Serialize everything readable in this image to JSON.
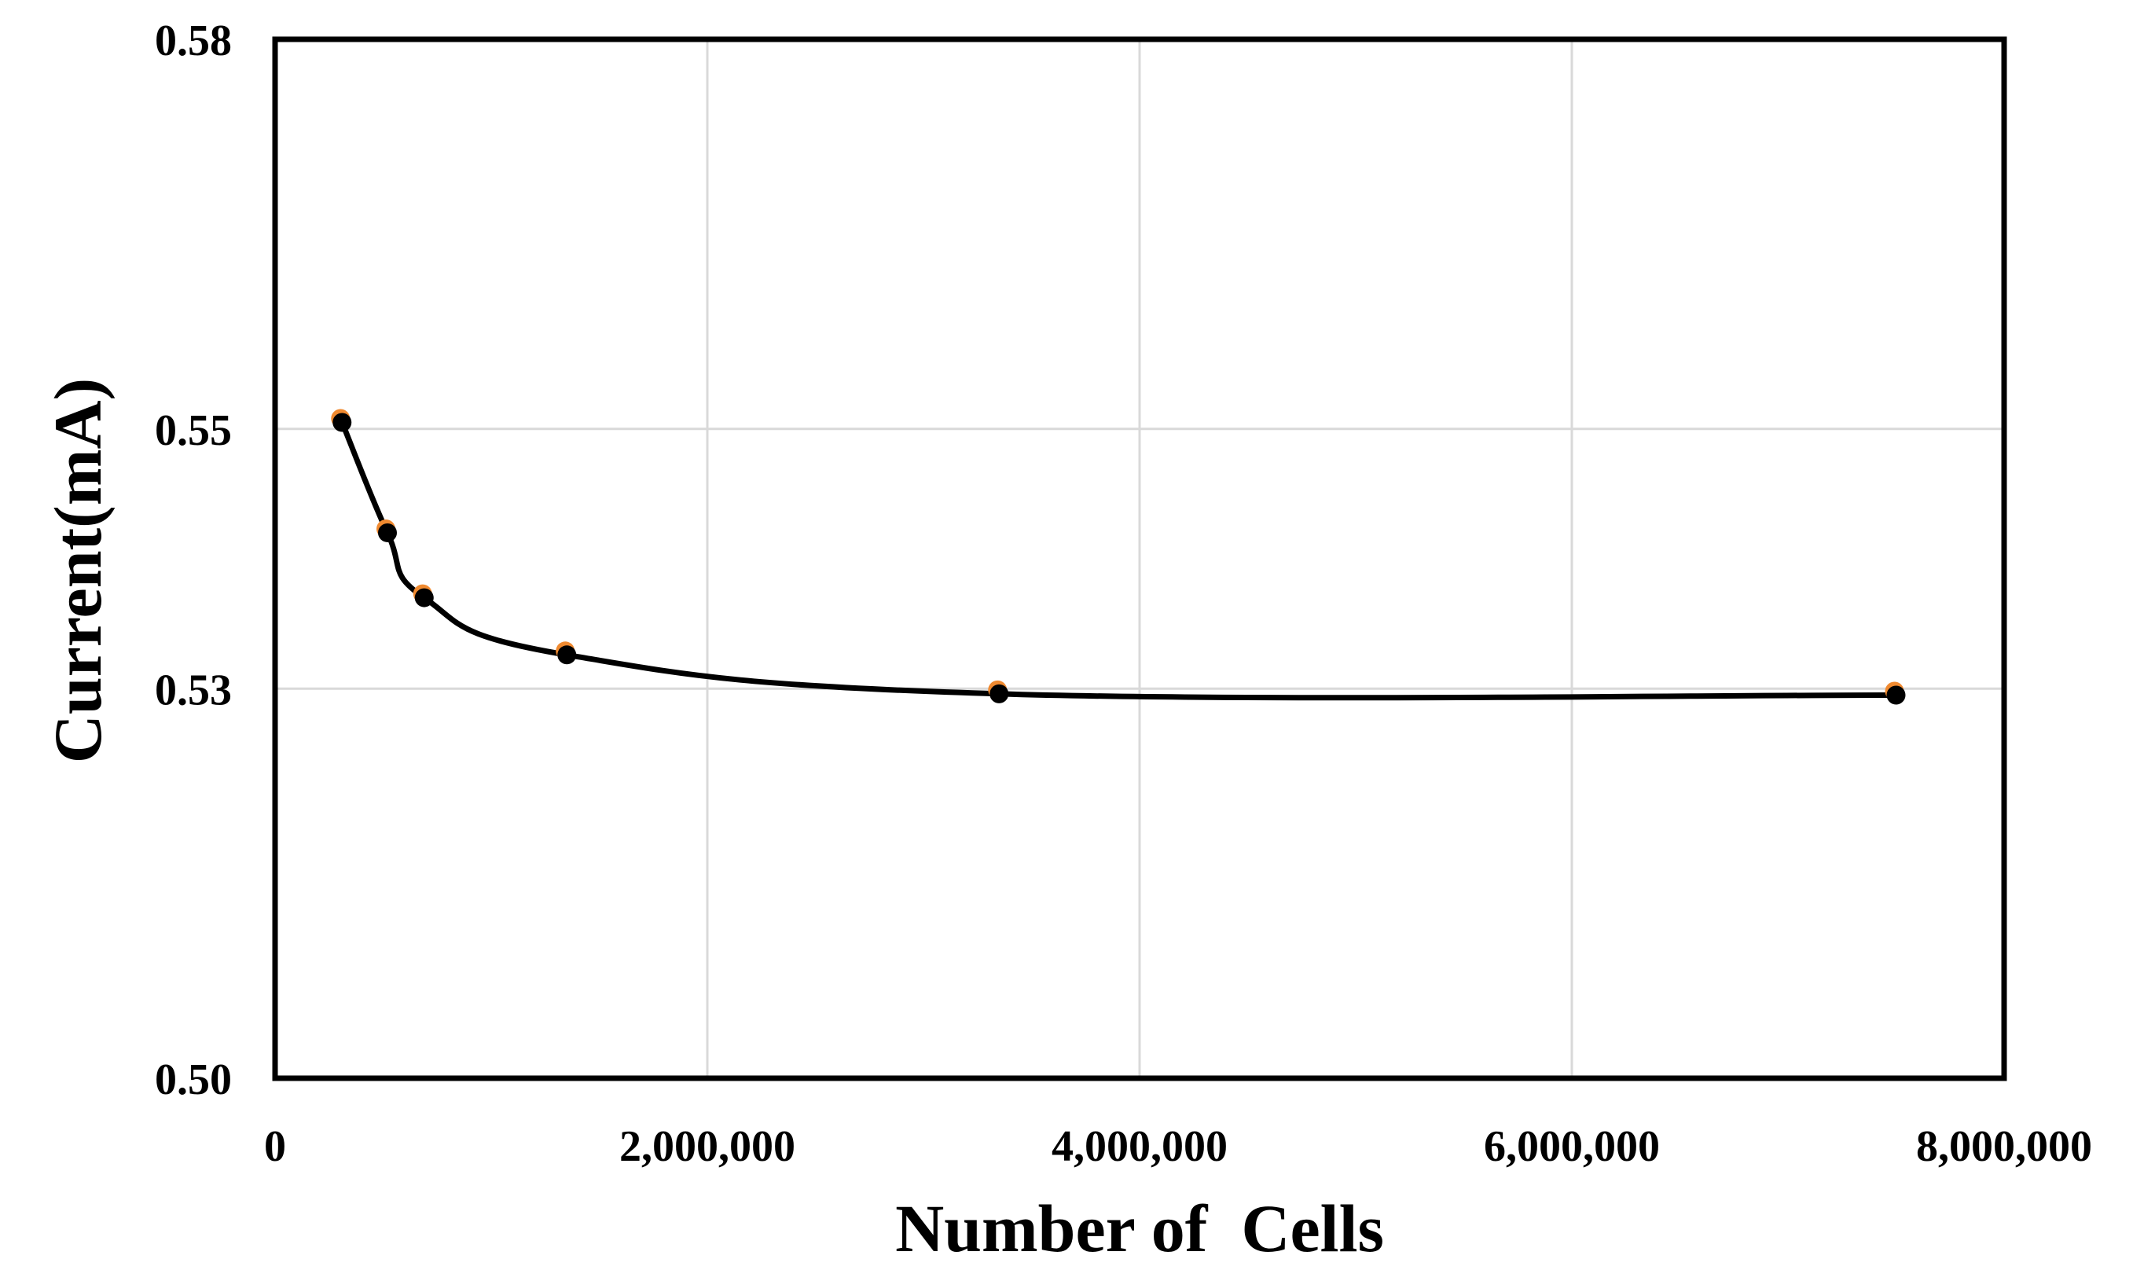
{
  "chart_data": {
    "type": "scatter",
    "title": "",
    "xlabel": "Number of  Cells",
    "ylabel": "Current(mA)",
    "xlim": [
      0,
      8000000
    ],
    "ylim": [
      0.5,
      0.58
    ],
    "x_ticks": [
      0,
      2000000,
      4000000,
      6000000,
      8000000
    ],
    "x_tick_labels": [
      "0",
      "2,000,000",
      "4,000,000",
      "6,000,000",
      "8,000,000"
    ],
    "y_ticks": [
      0.5,
      0.53,
      0.55,
      0.58
    ],
    "y_tick_labels": [
      "0.50",
      "0.53",
      "0.55",
      "0.58"
    ],
    "grid": true,
    "series": [
      {
        "name": "Current",
        "color": "#000000",
        "outline_color": "#f08a30",
        "smooth_line": true,
        "x": [
          310000,
          520000,
          690000,
          1350000,
          3350000,
          7500000
        ],
        "y": [
          0.5505,
          0.542,
          0.537,
          0.5326,
          0.5296,
          0.5295
        ]
      }
    ]
  }
}
